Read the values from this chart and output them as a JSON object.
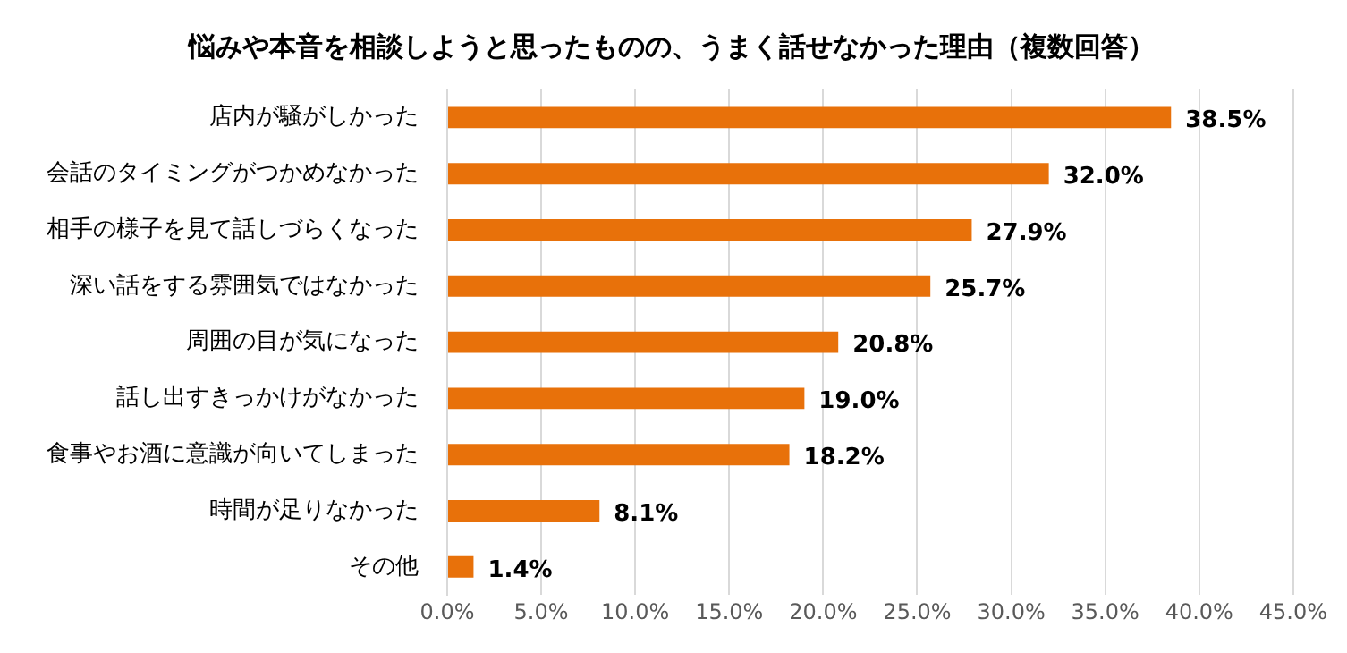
{
  "chart_data": {
    "type": "bar",
    "orientation": "horizontal",
    "title": "悩みや本音を相談しようと思ったものの、うまく話せなかった理由（複数回答）",
    "categories": [
      "店内が騒がしかった",
      "会話のタイミングがつかめなかった",
      "相手の様子を見て話しづらくなった",
      "深い話をする雰囲気ではなかった",
      "周囲の目が気になった",
      "話し出すきっかけがなかった",
      "食事やお酒に意識が向いてしまった",
      "時間が足りなかった",
      "その他"
    ],
    "values": [
      38.5,
      32.0,
      27.9,
      25.7,
      20.8,
      19.0,
      18.2,
      8.1,
      1.4
    ],
    "value_labels": [
      "38.5%",
      "32.0%",
      "27.9%",
      "25.7%",
      "20.8%",
      "19.0%",
      "18.2%",
      "8.1%",
      "1.4%"
    ],
    "color": "#e8710a",
    "xlim": [
      0,
      45
    ],
    "xticks": [
      {
        "value": 0,
        "label": "0.0%"
      },
      {
        "value": 5,
        "label": "5.0%"
      },
      {
        "value": 10,
        "label": "10.0%"
      },
      {
        "value": 15,
        "label": "15.0%"
      },
      {
        "value": 20,
        "label": "20.0%"
      },
      {
        "value": 25,
        "label": "25.0%"
      },
      {
        "value": 30,
        "label": "30.0%"
      },
      {
        "value": 35,
        "label": "35.0%"
      },
      {
        "value": 40,
        "label": "40.0%"
      },
      {
        "value": 45,
        "label": "45.0%"
      }
    ],
    "grid": "x",
    "legend": false
  }
}
